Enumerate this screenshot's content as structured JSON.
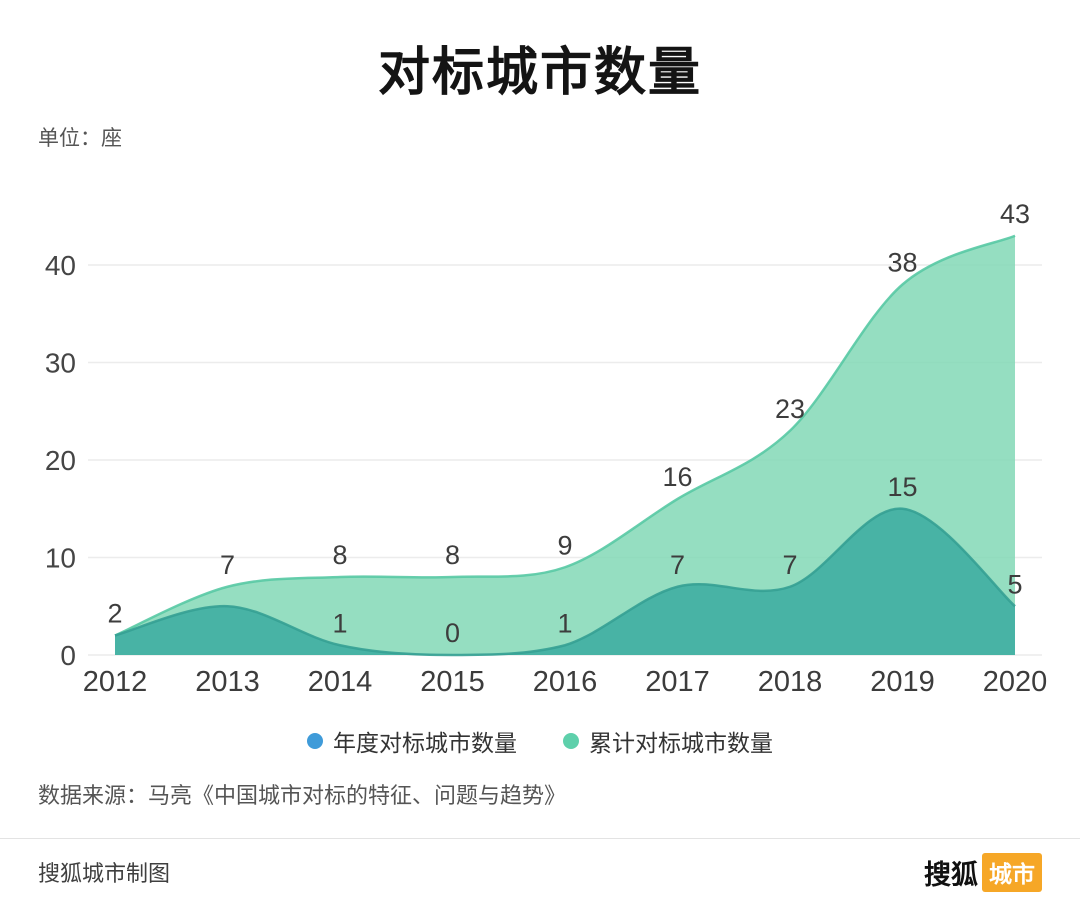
{
  "title": "对标城市数量",
  "unit_label": "单位：座",
  "chart_data": {
    "type": "area",
    "x": [
      "2012",
      "2013",
      "2014",
      "2015",
      "2016",
      "2017",
      "2018",
      "2019",
      "2020"
    ],
    "yticks": [
      0,
      10,
      20,
      30,
      40
    ],
    "ylim": [
      0,
      45
    ],
    "grid": "horizontal",
    "label_color": "#3d3d3d",
    "series": [
      {
        "name": "累计对标城市数量",
        "fill": "#82d8b6",
        "fill_opacity": 0.85,
        "stroke": "#58c9a4",
        "values": [
          2,
          7,
          8,
          8,
          9,
          16,
          23,
          38,
          43
        ],
        "labels": [
          "2",
          "7",
          "8",
          "8",
          "9",
          "16",
          "23",
          "38",
          "43"
        ]
      },
      {
        "name": "年度对标城市数量",
        "fill": "#3dada0",
        "fill_opacity": 0.88,
        "stroke": "#35a093",
        "values": [
          2,
          5,
          1,
          0,
          1,
          7,
          7,
          15,
          5
        ],
        "labels": [
          "",
          "",
          "1",
          "0",
          "1",
          "7",
          "7",
          "15",
          "5"
        ]
      }
    ]
  },
  "legend": {
    "items": [
      {
        "label": "年度对标城市数量",
        "color": "#3f9bd9"
      },
      {
        "label": "累计对标城市数量",
        "color": "#5ed0ab"
      }
    ]
  },
  "source": "数据来源：马亮《中国城市对标的特征、问题与趋势》",
  "footer": {
    "credit": "搜狐城市制图",
    "logo": {
      "text_black": "搜狐",
      "badge": "城市",
      "badge_color": "#f6a727"
    }
  }
}
